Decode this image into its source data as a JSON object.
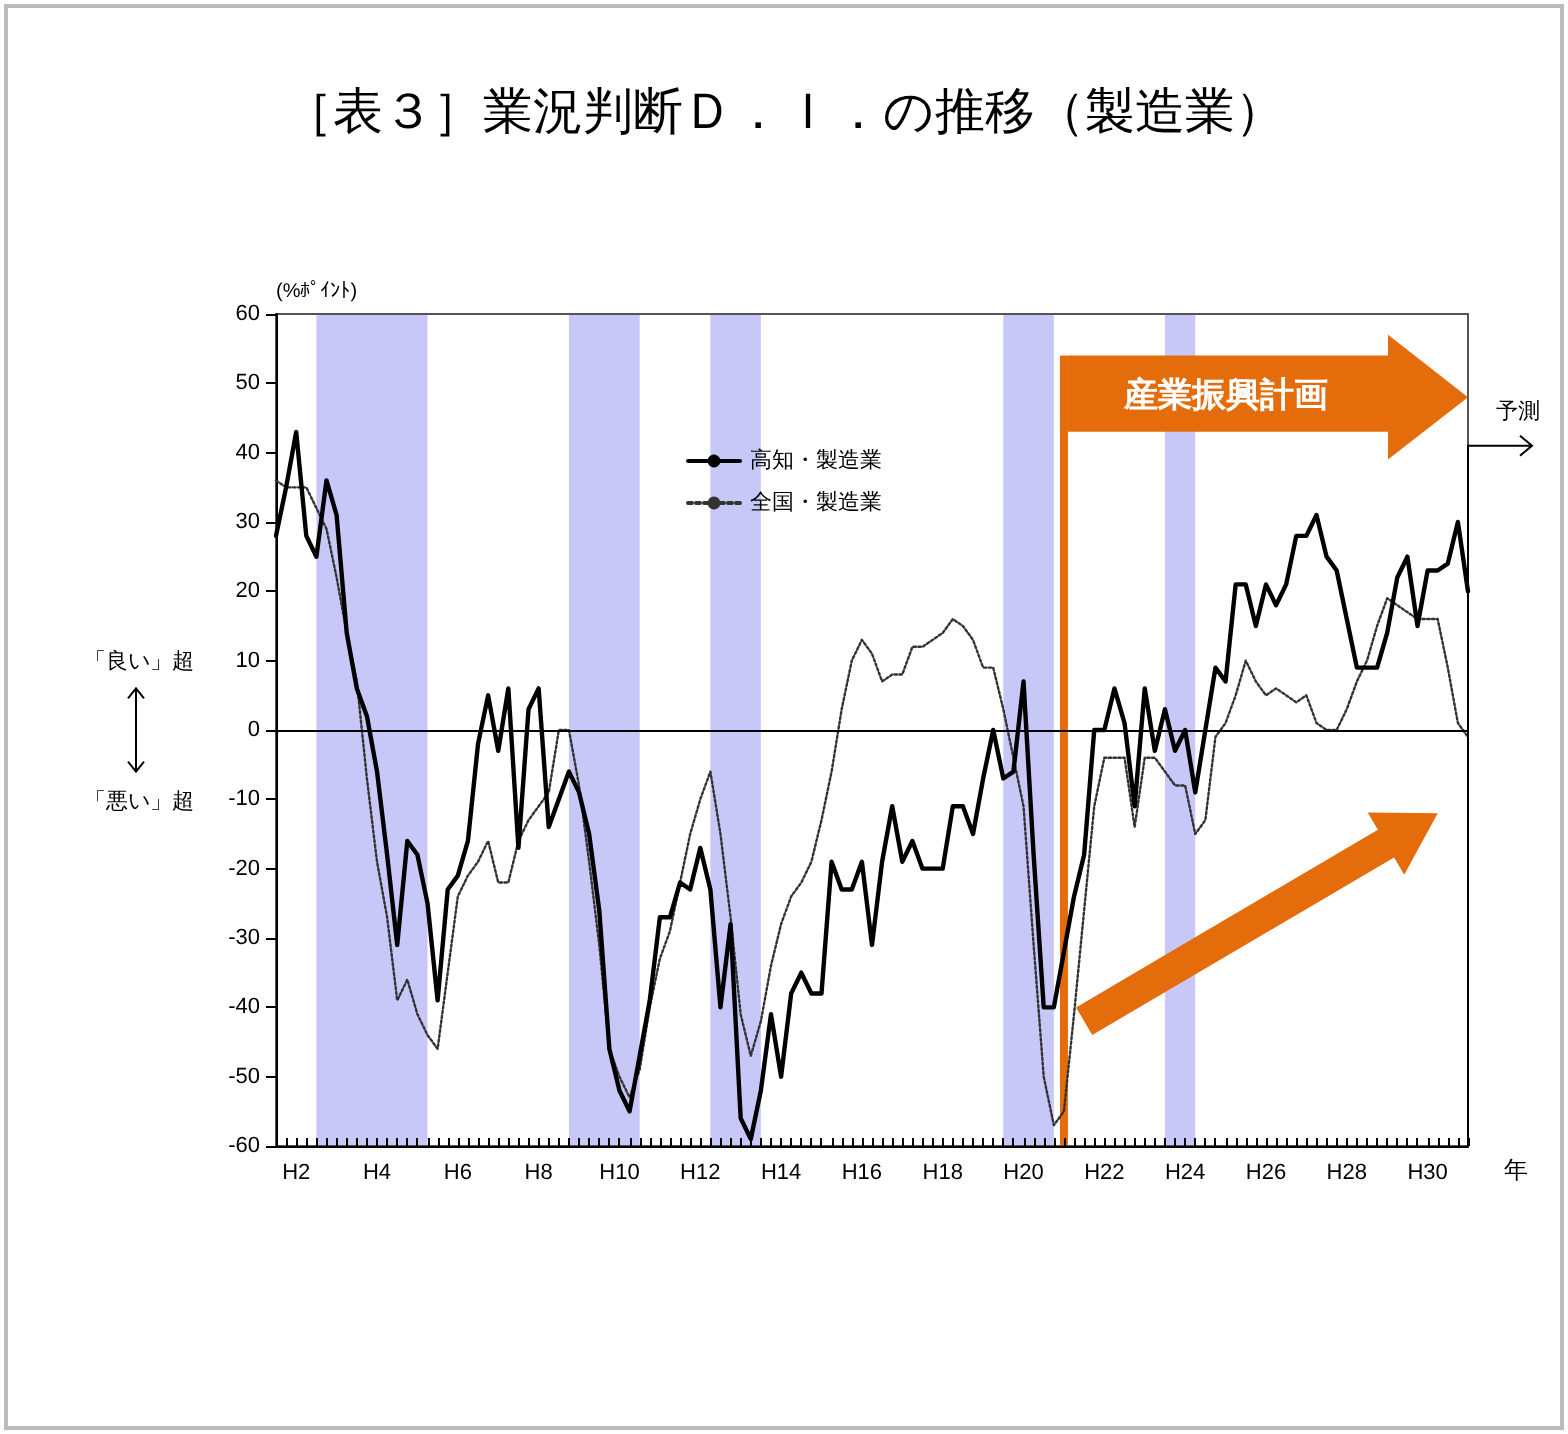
{
  "chart_data": {
    "type": "line",
    "title": "［表３］業況判断Ｄ．Ｉ．の推移（製造業）",
    "ylabel": "(%ﾎﾟｲﾝﾄ)",
    "xlabel": "年",
    "categories": [
      null,
      null,
      "H2",
      null,
      null,
      null,
      null,
      null,
      null,
      null,
      "H4",
      null,
      null,
      null,
      null,
      null,
      null,
      null,
      "H6",
      null,
      null,
      null,
      null,
      null,
      null,
      null,
      "H8",
      null,
      null,
      null,
      null,
      null,
      null,
      null,
      "H10",
      null,
      null,
      null,
      null,
      null,
      null,
      null,
      "H12",
      null,
      null,
      null,
      null,
      null,
      null,
      null,
      "H14",
      null,
      null,
      null,
      null,
      null,
      null,
      null,
      "H16",
      null,
      null,
      null,
      null,
      null,
      null,
      null,
      "H18",
      null,
      null,
      null,
      null,
      null,
      null,
      null,
      "H20",
      null,
      null,
      null,
      null,
      null,
      null,
      null,
      "H22",
      null,
      null,
      null,
      null,
      null,
      null,
      null,
      "H24",
      null,
      null,
      null,
      null,
      null,
      null,
      null,
      "H26",
      null,
      null,
      null,
      null,
      null,
      null,
      null,
      "H28",
      null,
      null,
      null,
      null,
      null,
      null,
      null,
      "H30",
      null,
      null,
      null,
      null
    ],
    "ylim": [
      -60,
      60
    ],
    "yticks": [
      -60,
      -50,
      -40,
      -30,
      -20,
      -10,
      0,
      10,
      20,
      30,
      40,
      50,
      60
    ],
    "grid": false,
    "legend": "top",
    "marker": "none",
    "series": [
      {
        "name": "高知・製造業",
        "color": "#000000",
        "line_style": "solid",
        "values": [
          28,
          35,
          43,
          28,
          25,
          36,
          31,
          14,
          6,
          2,
          -6,
          -18,
          -31,
          -16,
          -18,
          -25,
          -39,
          -23,
          -21,
          -16,
          -2,
          5,
          -3,
          6,
          -17,
          3,
          6,
          -14,
          -10,
          -6,
          -9,
          -15,
          -26,
          -46,
          -52,
          -55,
          -47,
          -39,
          -27,
          -27,
          -22,
          -23,
          -17,
          -23,
          -40,
          -28,
          -56,
          -59,
          -52,
          -41,
          -50,
          -38,
          -35,
          -38,
          -38,
          -19,
          -23,
          -23,
          -19,
          -31,
          -19,
          -11,
          -19,
          -16,
          -20,
          -20,
          -20,
          -11,
          -11,
          -15,
          -7,
          0,
          -7,
          -6,
          7,
          -18,
          -40,
          -40,
          -32,
          -24,
          -18,
          0,
          0,
          6,
          1,
          -11,
          6,
          -3,
          3,
          -3,
          0,
          -9,
          0,
          9,
          7,
          21,
          21,
          15,
          21,
          18,
          21,
          28,
          28,
          31,
          25,
          23,
          16,
          9,
          9,
          9,
          14,
          22,
          25,
          15,
          23,
          23,
          24,
          30,
          20
        ]
      },
      {
        "name": "全国・製造業",
        "color": "#333333",
        "line_style": "dotted",
        "values": [
          36,
          35,
          35,
          35,
          32,
          29,
          22,
          14,
          7,
          -7,
          -19,
          -27,
          -39,
          -36,
          -41,
          -44,
          -46,
          -35,
          -24,
          -21,
          -19,
          -16,
          -22,
          -22,
          -16,
          -13,
          -11,
          -9,
          0,
          0,
          -8,
          -19,
          -31,
          -46,
          -50,
          -53,
          -49,
          -40,
          -33,
          -29,
          -22,
          -15,
          -10,
          -6,
          -15,
          -27,
          -41,
          -47,
          -42,
          -34,
          -28,
          -24,
          -22,
          -19,
          -13,
          -6,
          3,
          10,
          13,
          11,
          7,
          8,
          8,
          12,
          12,
          13,
          14,
          16,
          15,
          13,
          9,
          9,
          3,
          -4,
          -11,
          -31,
          -50,
          -57,
          -55,
          -41,
          -26,
          -11,
          -4,
          -4,
          -4,
          -14,
          -4,
          -4,
          -6,
          -8,
          -8,
          -15,
          -13,
          -1,
          1,
          5,
          10,
          7,
          5,
          6,
          5,
          4,
          5,
          1,
          0,
          0,
          3,
          7,
          10,
          15,
          19,
          18,
          17,
          16,
          16,
          16,
          9,
          1,
          -1
        ]
      }
    ],
    "ref_lines": [
      {
        "axis": "y",
        "value": 0,
        "color": "#000000"
      }
    ],
    "annotations": [
      "産業振興計画",
      "「良い」超",
      "「悪い」超",
      "予測"
    ]
  }
}
